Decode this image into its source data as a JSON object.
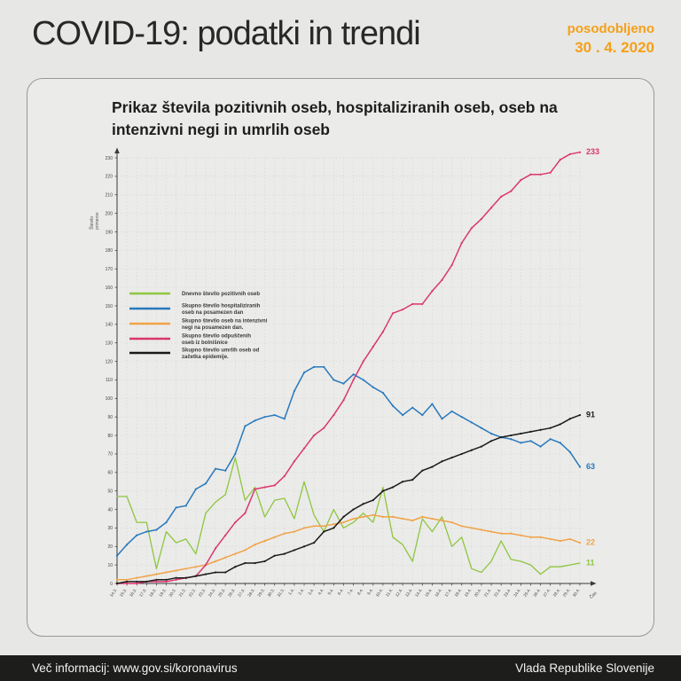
{
  "header": {
    "title": "COVID-19: podatki in trendi",
    "updated_label": "posodobljeno",
    "updated_date": "30 . 4. 2020"
  },
  "footer": {
    "info": "Več informacij: www.gov.si/koronavirus",
    "org": "Vlada Republike Slovenije"
  },
  "colors": {
    "accent_orange": "#f5a019",
    "footer_bg": "#1d1d1b",
    "card_bg": "#ebebe9",
    "page_bg": "#e7e7e5",
    "axis": "#3a3a3a",
    "grid": "#cfcfcd"
  },
  "chart_data": {
    "type": "line",
    "title": "Prikaz števila pozitivnih oseb, hospitaliziranih oseb, oseb na intenzivni negi in umrlih oseb",
    "ylabel": "Število primerov",
    "xlabel": "Čas",
    "ylim": [
      0,
      230
    ],
    "ytick_step": 10,
    "grid": true,
    "legend_position": "inside-left",
    "categories": [
      "14.3.",
      "15.3.",
      "16.3.",
      "17.3.",
      "18.3.",
      "19.3.",
      "20.3.",
      "21.3.",
      "22.3.",
      "23.3.",
      "24.3.",
      "25.3.",
      "26.3.",
      "27.3.",
      "28.3.",
      "29.3.",
      "30.3.",
      "31.3.",
      "1.4.",
      "2.4.",
      "3.4.",
      "4.4.",
      "5.4.",
      "6.4.",
      "7.4.",
      "8.4.",
      "9.4.",
      "10.4.",
      "11.4.",
      "12.4.",
      "13.4.",
      "14.4.",
      "15.4.",
      "16.4.",
      "17.4.",
      "18.4.",
      "19.4.",
      "20.4.",
      "21.4.",
      "22.4.",
      "23.4.",
      "24.4.",
      "25.4.",
      "26.4.",
      "27.4.",
      "28.4.",
      "29.4.",
      "30.4."
    ],
    "series": [
      {
        "name": "Dnevno število pozitivnih oseb",
        "legend_lines": [
          "Dnevno število pozitivnih oseb"
        ],
        "color": "#8dc63f",
        "markers": false,
        "end_label": "11",
        "values": [
          47,
          47,
          33,
          33,
          8,
          28,
          22,
          24,
          16,
          38,
          44,
          48,
          68,
          45,
          52,
          36,
          45,
          46,
          35,
          55,
          37,
          28,
          40,
          30,
          33,
          38,
          33,
          52,
          25,
          21,
          12,
          35,
          28,
          36,
          20,
          25,
          8,
          6,
          12,
          23,
          13,
          12,
          10,
          5,
          9,
          9,
          10,
          11
        ]
      },
      {
        "name": "Skupno število hospitaliziranih oseb na posamezen dan",
        "legend_lines": [
          "Skupno število hospitaliziranih",
          "oseb na posamezen dan"
        ],
        "color": "#2878bd",
        "markers": true,
        "end_label": "63",
        "values": [
          15,
          21,
          26,
          28,
          29,
          33,
          41,
          42,
          51,
          54,
          62,
          61,
          70,
          85,
          88,
          90,
          91,
          89,
          104,
          114,
          117,
          117,
          110,
          108,
          113,
          110,
          106,
          103,
          96,
          91,
          95,
          91,
          97,
          89,
          93,
          90,
          87,
          84,
          81,
          79,
          78,
          76,
          77,
          74,
          78,
          76,
          71,
          63
        ]
      },
      {
        "name": "Skupno število oseb na intenzivni negi na posamezen dan.",
        "legend_lines": [
          "Skupno število oseb na intenzivni",
          "negi na posamezen dan."
        ],
        "color": "#f0a348",
        "markers": true,
        "end_label": "22",
        "values": [
          2,
          2,
          3,
          4,
          5,
          6,
          7,
          8,
          9,
          10,
          12,
          14,
          16,
          18,
          21,
          23,
          25,
          27,
          28,
          30,
          31,
          31,
          32,
          33,
          35,
          36,
          37,
          36,
          36,
          35,
          34,
          36,
          35,
          34,
          33,
          31,
          30,
          29,
          28,
          27,
          27,
          26,
          25,
          25,
          24,
          23,
          24,
          22
        ]
      },
      {
        "name": "Skupno število odpuščenih oseb iz bolnišnice",
        "legend_lines": [
          "Skupno število odpuščenih",
          "oseb iz bolnišnice"
        ],
        "color": "#d9376e",
        "markers": true,
        "end_label": "233",
        "values": [
          0,
          0,
          0,
          1,
          1,
          1,
          2,
          3,
          4,
          10,
          19,
          26,
          33,
          38,
          51,
          52,
          53,
          58,
          66,
          73,
          80,
          84,
          91,
          99,
          110,
          120,
          128,
          136,
          146,
          148,
          151,
          151,
          158,
          164,
          172,
          184,
          192,
          197,
          203,
          209,
          212,
          218,
          221,
          221,
          222,
          229,
          232,
          233
        ]
      },
      {
        "name": "Skupno število umrlih oseb od začetka epidemije.",
        "legend_lines": [
          "Skupno število umrlih oseb od",
          "začetka epidemije."
        ],
        "color": "#1a1a1a",
        "markers": true,
        "end_label": "91",
        "values": [
          0,
          1,
          1,
          1,
          2,
          2,
          3,
          3,
          4,
          5,
          6,
          6,
          9,
          11,
          11,
          12,
          15,
          16,
          18,
          20,
          22,
          28,
          30,
          36,
          40,
          43,
          45,
          50,
          52,
          55,
          56,
          61,
          63,
          66,
          68,
          70,
          72,
          74,
          77,
          79,
          80,
          81,
          82,
          83,
          84,
          86,
          89,
          91
        ]
      }
    ]
  }
}
